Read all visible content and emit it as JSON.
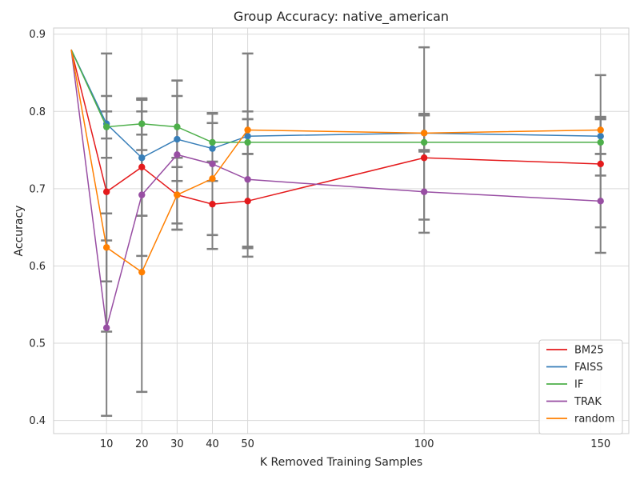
{
  "chart_data": {
    "type": "line",
    "title": "Group Accuracy: native_american",
    "xlabel": "K Removed Training Samples",
    "ylabel": "Accuracy",
    "xlim": [
      -5,
      158
    ],
    "ylim": [
      0.383,
      0.908
    ],
    "xticks": [
      10,
      20,
      30,
      40,
      50,
      100,
      150
    ],
    "yticks": [
      0.4,
      0.5,
      0.6,
      0.7,
      0.8,
      0.9
    ],
    "grid": true,
    "legend_position": "bottom-right",
    "errorbar_color": "#808080",
    "x": [
      0,
      10,
      20,
      30,
      40,
      50,
      100,
      150
    ],
    "series": [
      {
        "name": "BM25",
        "color": "#e41a1c",
        "values": [
          0.88,
          0.696,
          0.728,
          0.692,
          0.68,
          0.684,
          0.74,
          0.732
        ],
        "errors": [
          [
            null,
            null
          ],
          [
            0.58,
            0.82
          ],
          [
            0.665,
            0.8
          ],
          [
            0.655,
            0.74
          ],
          [
            0.64,
            0.735
          ],
          [
            0.625,
            0.745
          ],
          [
            0.66,
            0.795
          ],
          [
            0.65,
            0.79
          ]
        ]
      },
      {
        "name": "FAISS",
        "color": "#377eb8",
        "values": [
          0.88,
          0.784,
          0.74,
          0.764,
          0.752,
          0.768,
          0.772,
          0.768
        ],
        "errors": [
          [
            null,
            null
          ],
          [
            0.74,
            0.875
          ],
          [
            0.665,
            0.815
          ],
          [
            0.71,
            0.82
          ],
          [
            0.71,
            0.785
          ],
          [
            0.745,
            0.79
          ],
          [
            0.75,
            0.795
          ],
          [
            0.745,
            0.79
          ]
        ]
      },
      {
        "name": "IF",
        "color": "#4daf4a",
        "values": [
          0.88,
          0.78,
          0.784,
          0.78,
          0.76,
          0.76,
          0.76,
          0.76
        ],
        "errors": [
          [
            null,
            null
          ],
          [
            0.765,
            0.8
          ],
          [
            0.75,
            0.817
          ],
          [
            0.74,
            0.84
          ],
          [
            0.735,
            0.785
          ],
          [
            0.745,
            0.79
          ],
          [
            0.748,
            0.795
          ],
          [
            0.745,
            0.792
          ]
        ]
      },
      {
        "name": "TRAK",
        "color": "#984ea3",
        "values": [
          0.88,
          0.52,
          0.692,
          0.744,
          0.732,
          0.712,
          0.696,
          0.684
        ],
        "errors": [
          [
            null,
            null
          ],
          [
            0.515,
            0.668
          ],
          [
            0.613,
            0.77
          ],
          [
            0.647,
            0.84
          ],
          [
            0.64,
            0.797
          ],
          [
            0.623,
            0.875
          ],
          [
            0.643,
            0.883
          ],
          [
            0.617,
            0.847
          ]
        ]
      },
      {
        "name": "random",
        "color": "#ff7f00",
        "values": [
          0.88,
          0.624,
          0.592,
          0.692,
          0.713,
          0.776,
          0.772,
          0.776
        ],
        "errors": [
          [
            null,
            null
          ],
          [
            0.406,
            0.633
          ],
          [
            0.437,
            0.816
          ],
          [
            0.647,
            0.728
          ],
          [
            0.622,
            0.798
          ],
          [
            0.612,
            0.8
          ],
          [
            0.75,
            0.797
          ],
          [
            0.717,
            0.793
          ]
        ]
      }
    ]
  }
}
